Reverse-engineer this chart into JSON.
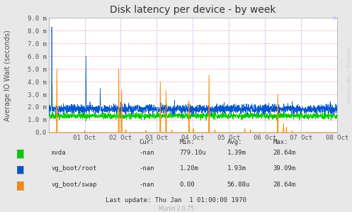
{
  "title": "Disk latency per device - by week",
  "ylabel": "Average IO Wait (seconds)",
  "background_color": "#e8e8e8",
  "plot_bg_color": "#ffffff",
  "ylim": [
    0.0,
    9.0
  ],
  "yticks": [
    0.0,
    1.0,
    2.0,
    3.0,
    4.0,
    5.0,
    6.0,
    7.0,
    8.0,
    9.0
  ],
  "ytick_labels": [
    "0.0",
    "1.0 m",
    "2.0 m",
    "3.0 m",
    "4.0 m",
    "5.0 m",
    "6.0 m",
    "7.0 m",
    "8.0 m",
    "9.0 m"
  ],
  "xtick_labels": [
    "01 Oct",
    "02 Oct",
    "03 Oct",
    "04 Oct",
    "05 Oct",
    "06 Oct",
    "07 Oct",
    "08 Oct"
  ],
  "color_xvda": "#00cc00",
  "color_root": "#0055cc",
  "color_swap": "#ff8800",
  "legend_labels": [
    "xvda",
    "vg_boot/root",
    "vg_boot/swap"
  ],
  "legend_cur": [
    "-nan",
    "-nan",
    "-nan"
  ],
  "legend_min": [
    "779.10u",
    "1.20m",
    "0.00"
  ],
  "legend_avg": [
    "1.39m",
    "1.93m",
    "56.88u"
  ],
  "legend_max": [
    "28.64m",
    "39.09m",
    "28.64m"
  ],
  "last_update": "Last update: Thu Jan  1 01:00:00 1970",
  "munin_version": "Munin 2.0.75",
  "rrdtool_text": "RRDTOOL / TOBI OETIKER",
  "title_fontsize": 10,
  "axis_label_fontsize": 7,
  "tick_fontsize": 6.5,
  "legend_fontsize": 6.5
}
